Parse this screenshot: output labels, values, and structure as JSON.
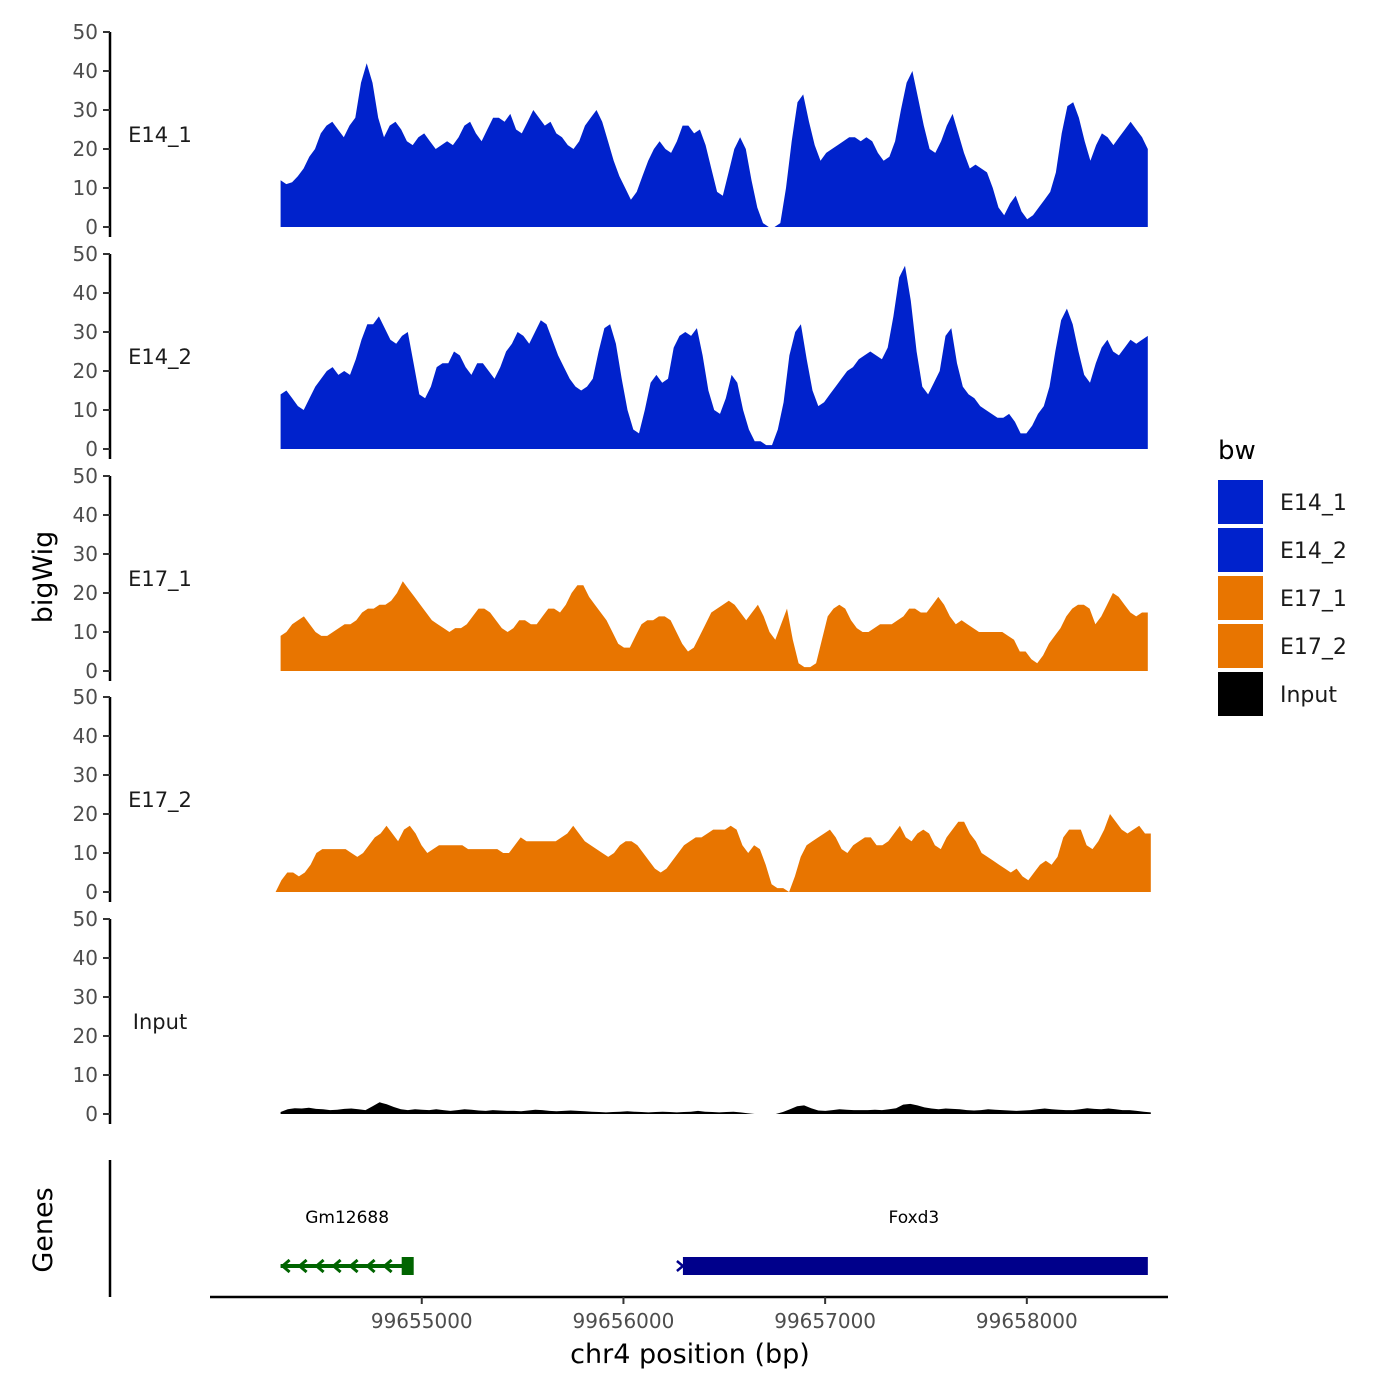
{
  "chart_data": {
    "type": "area",
    "title": "",
    "ylabel": "bigWig",
    "xlabel": "chr4 position (bp)",
    "xlim": [
      99653950,
      99658700
    ],
    "ylim": [
      0,
      50
    ],
    "y_ticks": [
      0,
      10,
      20,
      30,
      40,
      50
    ],
    "x_ticks": [
      99655000,
      99656000,
      99657000,
      99658000
    ],
    "x_range": [
      99654300,
      99658600
    ],
    "legend_title": "bw",
    "legend_position": "right",
    "grid": false,
    "series": [
      {
        "name": "E14_1",
        "color": "#0022CC",
        "values": [
          12,
          11,
          11.5,
          13,
          15,
          18,
          20,
          24,
          26,
          27,
          25,
          23,
          26,
          28,
          37,
          42,
          37,
          28,
          23,
          26,
          27,
          25,
          22,
          21,
          23,
          24,
          22,
          20,
          21,
          22,
          21,
          23,
          26,
          27,
          24,
          22,
          25,
          28,
          28,
          27,
          29,
          25,
          24,
          27,
          30,
          28,
          26,
          27,
          24,
          23,
          21,
          20,
          22,
          26,
          28,
          30,
          27,
          22,
          17,
          13,
          10,
          7,
          9,
          13,
          17,
          20,
          22,
          20,
          19,
          22,
          26,
          26,
          24,
          25,
          21,
          15,
          9,
          8,
          14,
          20,
          23,
          20,
          12,
          5,
          1,
          0,
          0,
          1,
          10,
          22,
          32,
          34,
          27,
          21,
          17,
          19,
          20,
          21,
          22,
          23,
          23,
          22,
          23,
          22,
          19,
          17,
          18,
          22,
          30,
          37,
          40,
          33,
          26,
          20,
          19,
          22,
          26,
          29,
          24,
          19,
          15,
          16,
          15,
          14,
          10,
          5,
          3,
          6,
          8,
          4,
          2,
          3,
          5,
          7,
          9,
          14,
          24,
          31,
          32,
          28,
          22,
          17,
          21,
          24,
          23,
          21,
          23,
          25,
          27,
          25,
          23,
          20
        ]
      },
      {
        "name": "E14_2",
        "color": "#0022CC",
        "values": [
          14,
          15,
          13,
          11,
          10,
          13,
          16,
          18,
          20,
          21,
          19,
          20,
          19,
          23,
          28,
          32,
          32,
          34,
          31,
          28,
          27,
          29,
          30,
          22,
          14,
          13,
          16,
          21,
          22,
          22,
          25,
          24,
          21,
          19,
          22,
          22,
          20,
          18,
          21,
          25,
          27,
          30,
          29,
          27,
          30,
          33,
          32,
          28,
          24,
          21,
          18,
          16,
          15,
          16,
          18,
          25,
          31,
          32,
          27,
          18,
          10,
          5,
          4,
          10,
          17,
          19,
          17,
          18,
          26,
          29,
          30,
          29,
          31,
          24,
          15,
          10,
          9,
          13,
          19,
          17,
          10,
          5,
          2,
          2,
          1,
          1,
          5,
          12,
          24,
          30,
          32,
          23,
          15,
          11,
          12,
          14,
          16,
          18,
          20,
          21,
          23,
          24,
          25,
          24,
          23,
          26,
          34,
          44,
          47,
          38,
          25,
          16,
          14,
          17,
          20,
          29,
          31,
          22,
          16,
          14,
          13,
          11,
          10,
          9,
          8,
          8,
          9,
          7,
          4,
          4,
          6,
          9,
          11,
          16,
          25,
          33,
          36,
          32,
          25,
          19,
          17,
          22,
          26,
          28,
          25,
          24,
          26,
          28,
          27,
          28,
          29
        ]
      },
      {
        "name": "E17_1",
        "color": "#E87500",
        "values": [
          9,
          10,
          12,
          13,
          14,
          12,
          10,
          9,
          9,
          10,
          11,
          12,
          12,
          13,
          15,
          16,
          16,
          17,
          17,
          18,
          20,
          23,
          21,
          19,
          17,
          15,
          13,
          12,
          11,
          10,
          11,
          11,
          12,
          14,
          16,
          16,
          15,
          13,
          11,
          10,
          11,
          13,
          13,
          12,
          12,
          14,
          16,
          16,
          15,
          17,
          20,
          22,
          22,
          19,
          17,
          15,
          13,
          10,
          7,
          6,
          6,
          9,
          12,
          13,
          13,
          14,
          14,
          13,
          10,
          7,
          5,
          6,
          9,
          12,
          15,
          16,
          17,
          18,
          17,
          15,
          13,
          15,
          17,
          14,
          10,
          8,
          12,
          16,
          8,
          2,
          1,
          1,
          2,
          8,
          14,
          16,
          17,
          16,
          13,
          11,
          10,
          10,
          11,
          12,
          12,
          12,
          13,
          14,
          16,
          16,
          15,
          15,
          17,
          19,
          17,
          14,
          12,
          13,
          12,
          11,
          10,
          10,
          10,
          10,
          10,
          9,
          8,
          5,
          5,
          3,
          2,
          4,
          7,
          9,
          11,
          14,
          16,
          17,
          17,
          16,
          12,
          14,
          17,
          20,
          19,
          17,
          15,
          14,
          15,
          15
        ]
      },
      {
        "name": "E17_2",
        "color": "#E87500",
        "values": [
          0,
          3,
          5,
          5,
          4,
          5,
          7,
          10,
          11,
          11,
          11,
          11,
          11,
          10,
          9,
          10,
          12,
          14,
          15,
          17,
          15,
          13,
          16,
          17,
          15,
          12,
          10,
          11,
          12,
          12,
          12,
          12,
          12,
          11,
          11,
          11,
          11,
          11,
          11,
          10,
          10,
          12,
          14,
          13,
          13,
          13,
          13,
          13,
          13,
          14,
          15,
          17,
          15,
          13,
          12,
          11,
          10,
          9,
          10,
          12,
          13,
          13,
          12,
          10,
          8,
          6,
          5,
          6,
          8,
          10,
          12,
          13,
          14,
          14,
          15,
          16,
          16,
          16,
          17,
          16,
          12,
          10,
          12,
          11,
          7,
          2,
          1,
          1,
          0,
          4,
          9,
          12,
          13,
          14,
          15,
          16,
          14,
          11,
          10,
          12,
          13,
          14,
          14,
          12,
          12,
          13,
          15,
          17,
          14,
          13,
          15,
          16,
          15,
          12,
          11,
          14,
          16,
          18,
          18,
          15,
          13,
          10,
          9,
          8,
          7,
          6,
          5,
          6,
          4,
          3,
          5,
          7,
          8,
          7,
          9,
          14,
          16,
          16,
          16,
          12,
          11,
          13,
          16,
          20,
          18,
          16,
          15,
          16,
          17,
          15,
          15
        ]
      },
      {
        "name": "Input",
        "color": "#000000",
        "values": [
          0.5,
          1.2,
          1.5,
          1.4,
          1.6,
          1.3,
          1.2,
          1,
          1.1,
          1.3,
          1.4,
          1.2,
          1,
          2,
          3,
          2.5,
          1.8,
          1.2,
          1,
          1.2,
          1.1,
          1,
          1.2,
          1,
          0.8,
          1,
          1.2,
          1.1,
          0.9,
          0.8,
          1,
          0.9,
          0.8,
          0.8,
          0.7,
          0.9,
          1.1,
          1,
          0.8,
          0.7,
          0.8,
          0.9,
          0.8,
          0.7,
          0.6,
          0.5,
          0.4,
          0.5,
          0.6,
          0.7,
          0.6,
          0.5,
          0.4,
          0.5,
          0.6,
          0.5,
          0.4,
          0.5,
          0.6,
          0.8,
          0.6,
          0.5,
          0.4,
          0.5,
          0.6,
          0.4,
          0.2,
          0,
          0,
          0,
          0,
          0.5,
          1.2,
          2,
          2.2,
          1.5,
          0.9,
          0.8,
          1,
          1.2,
          1.1,
          1,
          1,
          1,
          1.1,
          1,
          1.2,
          1.5,
          2.4,
          2.6,
          2.2,
          1.7,
          1.4,
          1.2,
          1.4,
          1.3,
          1.2,
          1,
          0.9,
          1,
          1.2,
          1.1,
          1,
          0.9,
          0.8,
          0.9,
          1,
          1.2,
          1.4,
          1.2,
          1.1,
          1,
          1,
          1.2,
          1.5,
          1.3,
          1.2,
          1.4,
          1.2,
          1,
          1,
          0.8,
          0.6,
          0.4
        ]
      }
    ],
    "genes": {
      "label": "Genes",
      "items": [
        {
          "name": "Gm12688",
          "start": 99654300,
          "end": 99654960,
          "strand": "-",
          "color": "#006400"
        },
        {
          "name": "Foxd3",
          "start": 99656280,
          "end": 99658600,
          "strand": "+",
          "color": "#00008B"
        }
      ]
    }
  }
}
